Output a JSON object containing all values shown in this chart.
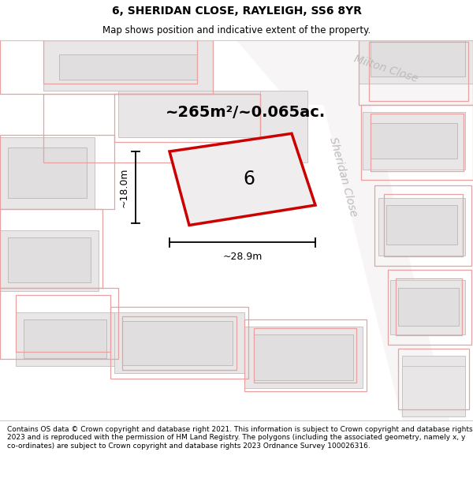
{
  "title": "6, SHERIDAN CLOSE, RAYLEIGH, SS6 8YR",
  "subtitle": "Map shows position and indicative extent of the property.",
  "footer": "Contains OS data © Crown copyright and database right 2021. This information is subject to Crown copyright and database rights 2023 and is reproduced with the permission of HM Land Registry. The polygons (including the associated geometry, namely x, y co-ordinates) are subject to Crown copyright and database rights 2023 Ordnance Survey 100026316.",
  "area_label": "~265m²/~0.065ac.",
  "width_label": "~28.9m",
  "height_label": "~18.0m",
  "property_number": "6",
  "map_bg": "#f7f5f5",
  "block_fill": "#e8e6e6",
  "block_edge": "#c8c4c4",
  "outline_edge": "#e8a8a8",
  "plot_fill": "#f0edee",
  "plot_edge": "#cc0000",
  "dim_color": "#111111",
  "street_color": "#c0bcbc",
  "street_sheridan": "Sheridan Close",
  "street_milton": "Milton Close",
  "title_fontsize": 10,
  "subtitle_fontsize": 8.5,
  "footer_fontsize": 6.5,
  "area_fontsize": 14,
  "dim_fontsize": 9,
  "number_fontsize": 17
}
